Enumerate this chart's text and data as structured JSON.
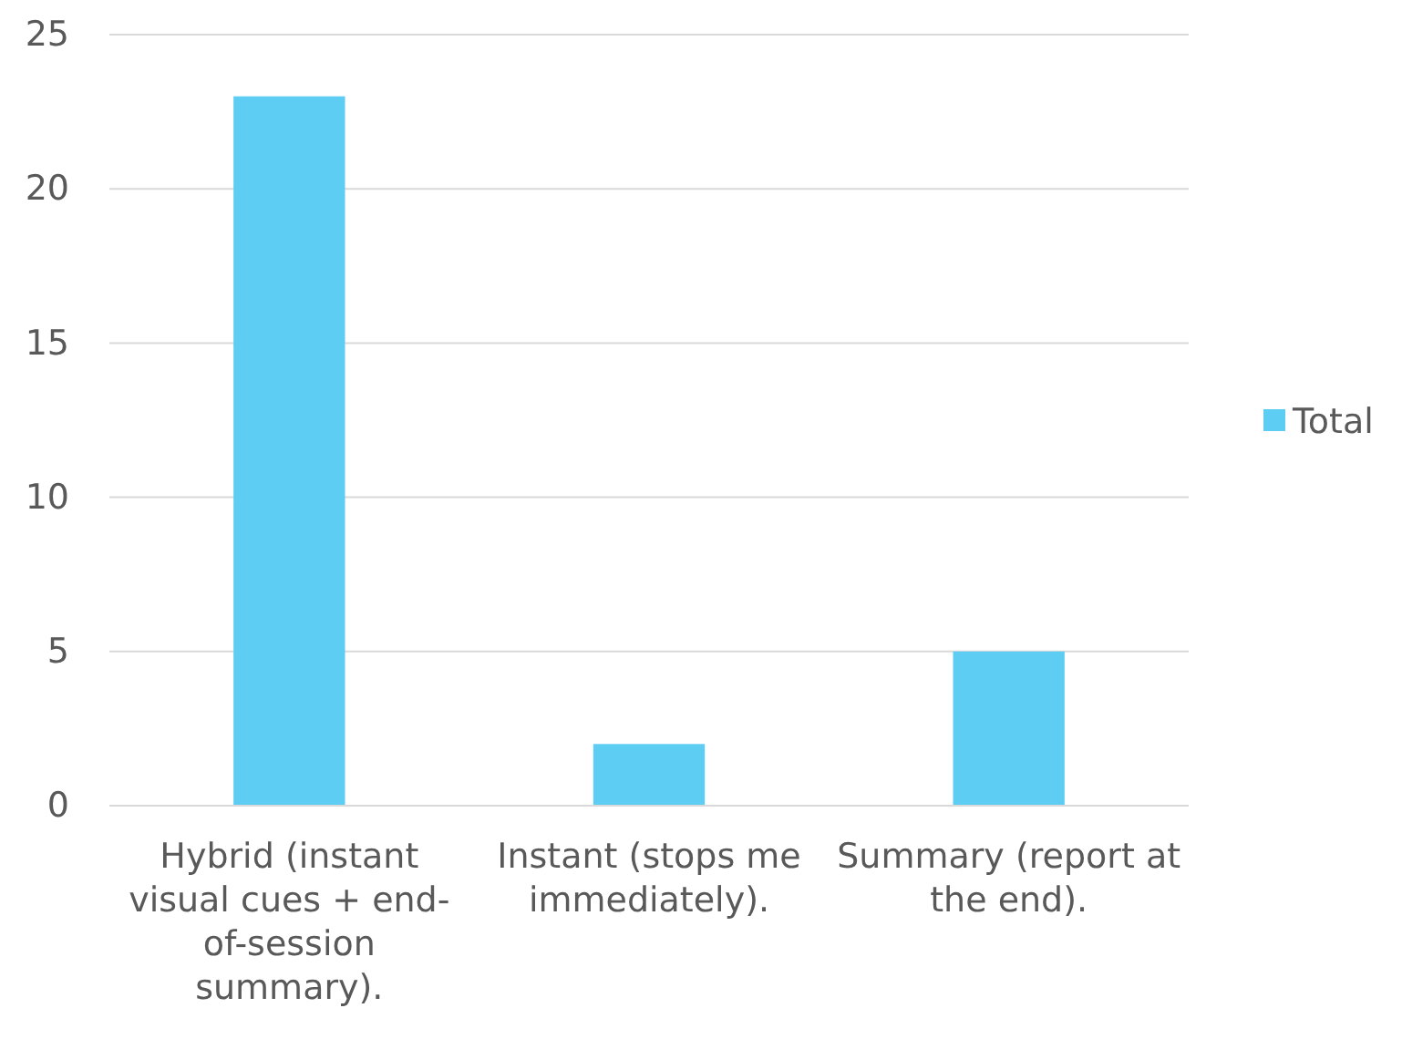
{
  "chart_data": {
    "type": "bar",
    "categories": [
      "Hybrid (instant visual cues + end-of-session summary).",
      "Instant (stops me immediately).",
      "Summary (report at the end)."
    ],
    "series": [
      {
        "name": "Total",
        "color": "#5ecdf3",
        "values": [
          23,
          2,
          5
        ]
      }
    ],
    "ylim": [
      0,
      25
    ],
    "yticks": [
      0,
      5,
      10,
      15,
      20,
      25
    ],
    "grid": "y",
    "legend": "right"
  }
}
